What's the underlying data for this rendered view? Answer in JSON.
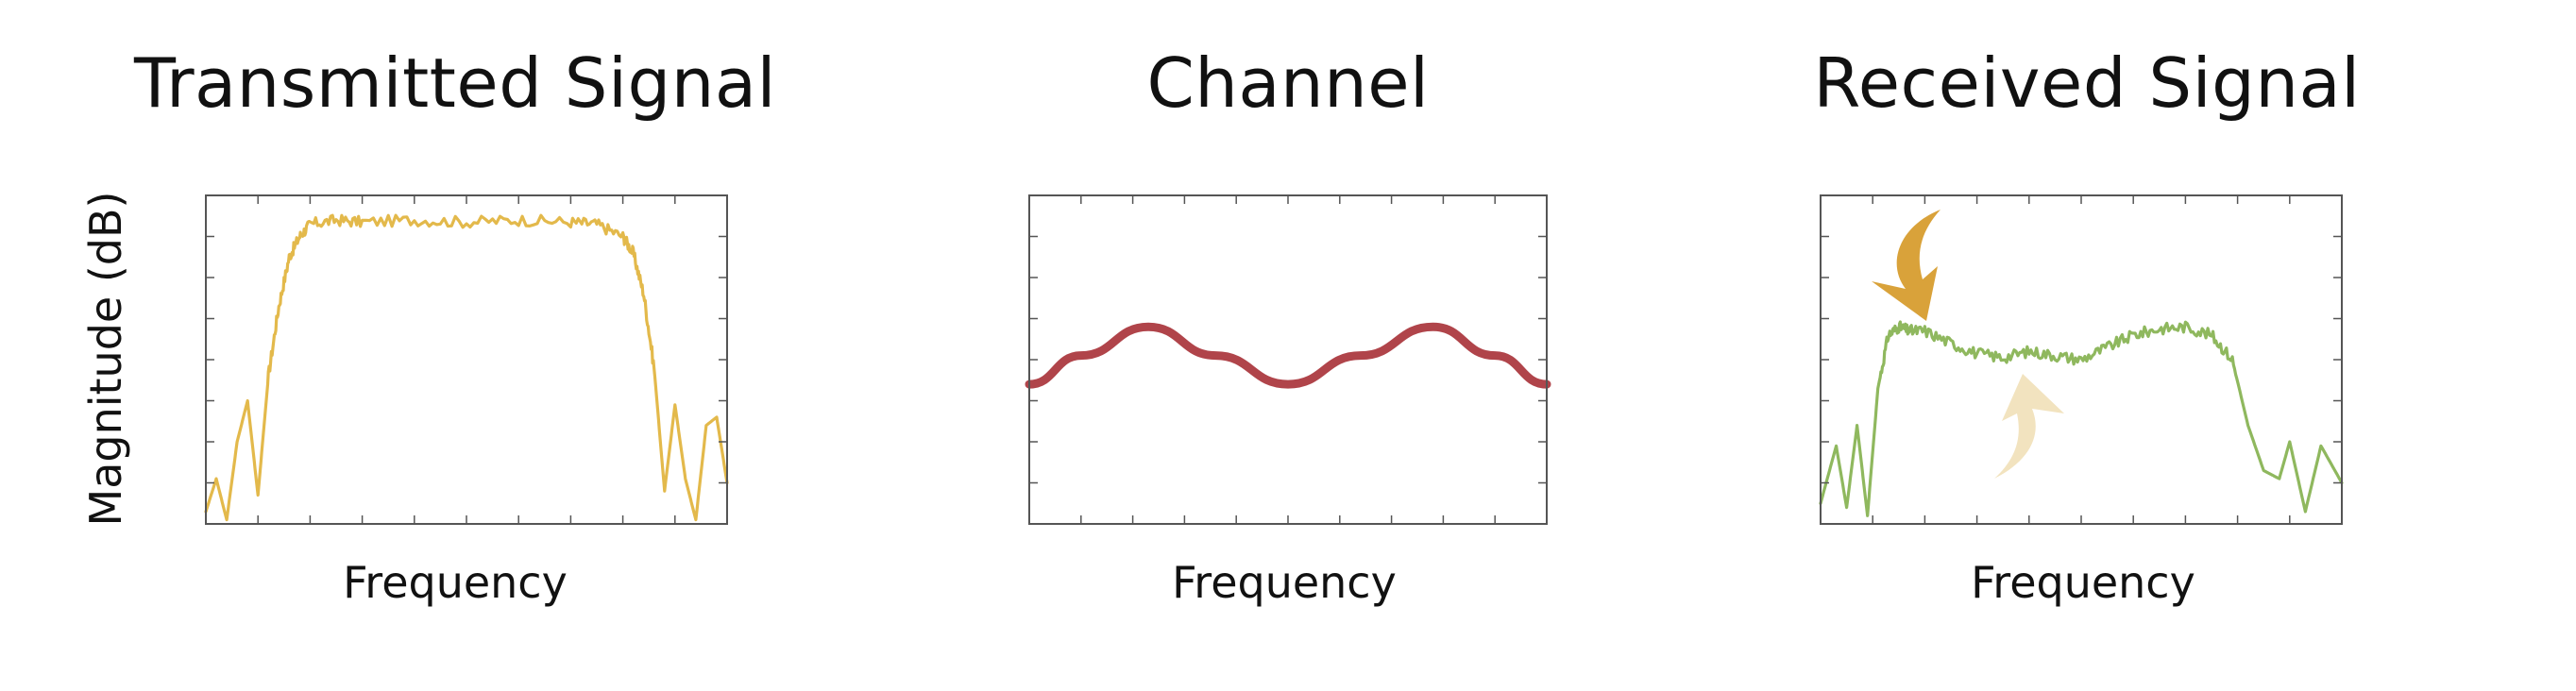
{
  "colors": {
    "transmitted": "#e3b94b",
    "channel": "#b0444a",
    "received": "#8fb85e",
    "arrow_down": "#d9a23a",
    "arrow_up": "#f2e3bf",
    "frame": "#555555"
  },
  "icons": [
    "curved-arrow-down-icon",
    "curved-arrow-up-icon"
  ],
  "chart_data": [
    {
      "type": "line",
      "title": "Transmitted Signal",
      "xlabel": "Frequency",
      "ylabel": "Magnitude (dB)",
      "xlim": [
        0,
        1
      ],
      "ylim": [
        0,
        8
      ],
      "grid": false,
      "series": [
        {
          "x": [
            0.0,
            0.02,
            0.04,
            0.06,
            0.08,
            0.1,
            0.12,
            0.14,
            0.16,
            0.18,
            0.2,
            0.25,
            0.3,
            0.4,
            0.5,
            0.6,
            0.7,
            0.75,
            0.8,
            0.82,
            0.84,
            0.86,
            0.88,
            0.9,
            0.92,
            0.94,
            0.96,
            0.98,
            1.0
          ],
          "values": [
            0.3,
            1.1,
            0.1,
            2.0,
            3.0,
            0.7,
            3.6,
            5.3,
            6.5,
            7.0,
            7.3,
            7.4,
            7.35,
            7.4,
            7.35,
            7.4,
            7.35,
            7.3,
            7.0,
            6.6,
            5.6,
            3.8,
            0.8,
            2.9,
            1.1,
            0.1,
            2.4,
            2.6,
            1.0
          ]
        }
      ]
    },
    {
      "type": "line",
      "title": "Channel",
      "xlabel": "Frequency",
      "xlim": [
        0,
        1
      ],
      "ylim": [
        0,
        8
      ],
      "grid": false,
      "series": [
        {
          "x": [
            0.0,
            0.1,
            0.23,
            0.36,
            0.5,
            0.64,
            0.78,
            0.9,
            1.0
          ],
          "values": [
            3.4,
            4.1,
            4.8,
            4.1,
            3.4,
            4.1,
            4.8,
            4.1,
            3.4
          ]
        }
      ]
    },
    {
      "type": "line",
      "title": "Received Signal",
      "xlabel": "Frequency",
      "xlim": [
        0,
        1
      ],
      "ylim": [
        0,
        8
      ],
      "grid": false,
      "series": [
        {
          "x": [
            0.0,
            0.03,
            0.05,
            0.07,
            0.09,
            0.11,
            0.13,
            0.15,
            0.17,
            0.2,
            0.25,
            0.3,
            0.35,
            0.4,
            0.45,
            0.5,
            0.55,
            0.6,
            0.65,
            0.7,
            0.75,
            0.79,
            0.82,
            0.85,
            0.88,
            0.9,
            0.93,
            0.96,
            1.0
          ],
          "values": [
            0.5,
            1.9,
            0.4,
            2.4,
            0.2,
            3.3,
            4.6,
            4.8,
            4.7,
            4.7,
            4.4,
            4.15,
            4.05,
            4.2,
            4.1,
            4.0,
            4.3,
            4.6,
            4.75,
            4.8,
            4.6,
            4.0,
            2.4,
            1.3,
            1.1,
            2.0,
            0.3,
            1.9,
            1.0
          ]
        }
      ]
    }
  ]
}
